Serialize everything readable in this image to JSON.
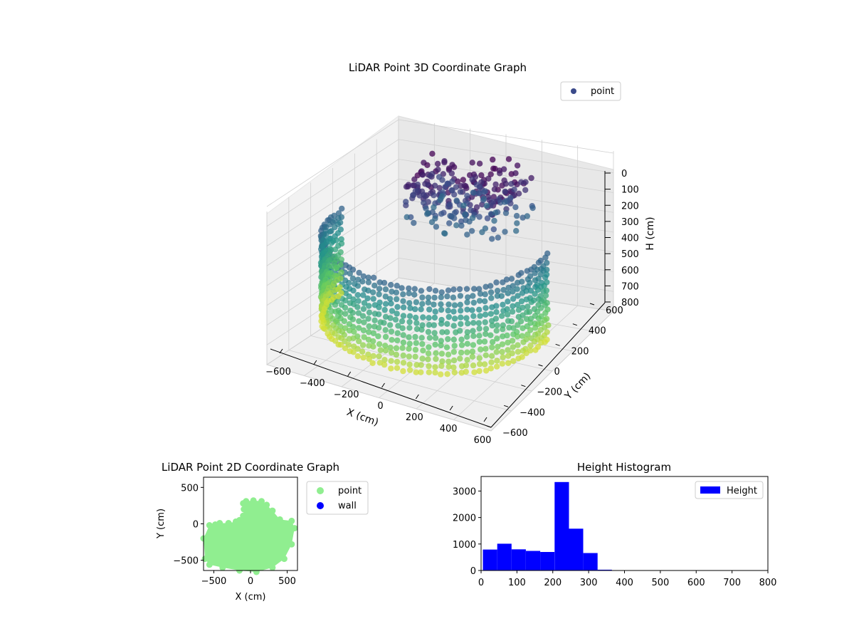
{
  "chart_data": [
    {
      "type": "scatter3d",
      "title": "LiDAR Point 3D Coordinate Graph",
      "xlabel": "X (cm)",
      "ylabel": "Y (cm)",
      "zlabel": "H (cm)",
      "xlim": [
        -600,
        600
      ],
      "ylim": [
        -600,
        600
      ],
      "zlim": [
        800,
        0
      ],
      "xticks": [
        "−600",
        "−400",
        "−200",
        "0",
        "200",
        "400",
        "600"
      ],
      "yticks": [
        "−600",
        "−400",
        "−200",
        "0",
        "200",
        "400",
        "600"
      ],
      "zticks": [
        "0",
        "100",
        "200",
        "300",
        "400",
        "500",
        "600",
        "700",
        "800"
      ],
      "legend": {
        "entries": [
          "point"
        ],
        "placement": "upper-right"
      },
      "grid": true,
      "colormap": "viridis",
      "series": [
        {
          "name": "point",
          "color": "#3b4a8a",
          "description_free": true,
          "shape": {
            "wall_radius": 560,
            "wall_y_range": [
              -600,
              80
            ],
            "wall_h_range": [
              220,
              650
            ],
            "arc_x_range": [
              -600,
              600
            ],
            "back_cluster_x_range": [
              -250,
              300
            ],
            "back_cluster_y_range": [
              0,
              400
            ],
            "back_cluster_h_range": [
              0,
              250
            ]
          }
        }
      ]
    },
    {
      "type": "scatter",
      "title": "LiDAR Point 2D Coordinate Graph",
      "xlabel": "X (cm)",
      "ylabel": "Y (cm)",
      "xlim": [
        -640,
        640
      ],
      "ylim": [
        -640,
        640
      ],
      "xticks": [
        -500,
        0,
        500
      ],
      "yticks": [
        -500,
        0,
        500
      ],
      "legend": {
        "entries": [
          "point",
          "wall"
        ],
        "placement": "outside-right"
      },
      "series": [
        {
          "name": "point",
          "color": "#90ee90",
          "outline": [
            [
              -620,
              -480
            ],
            [
              -640,
              -200
            ],
            [
              -560,
              -20
            ],
            [
              -480,
              -10
            ],
            [
              -420,
              10
            ],
            [
              -300,
              10
            ],
            [
              -200,
              30
            ],
            [
              -150,
              50
            ],
            [
              -100,
              110
            ],
            [
              -90,
              200
            ],
            [
              -100,
              280
            ],
            [
              -60,
              310
            ],
            [
              40,
              320
            ],
            [
              150,
              310
            ],
            [
              220,
              260
            ],
            [
              300,
              180
            ],
            [
              400,
              60
            ],
            [
              560,
              40
            ],
            [
              600,
              -60
            ],
            [
              560,
              -280
            ],
            [
              460,
              -480
            ],
            [
              300,
              -600
            ],
            [
              80,
              -660
            ],
            [
              -150,
              -640
            ],
            [
              -380,
              -600
            ],
            [
              -560,
              -560
            ]
          ]
        },
        {
          "name": "wall",
          "color": "#0000ff",
          "values": []
        }
      ]
    },
    {
      "type": "bar",
      "title": "Height Histogram",
      "xlabel": "",
      "ylabel": "",
      "xlim": [
        0,
        800
      ],
      "ylim": [
        0,
        3550
      ],
      "xticks": [
        0,
        100,
        200,
        300,
        400,
        500,
        600,
        700,
        800
      ],
      "yticks": [
        0,
        1000,
        2000,
        3000
      ],
      "legend": {
        "entries": [
          "Height"
        ],
        "placement": "upper-right"
      },
      "series": [
        {
          "name": "Height",
          "color": "#0000ff",
          "bin_width": 40,
          "bins": [
            5,
            45,
            85,
            125,
            165,
            205,
            245,
            285,
            325
          ],
          "values": [
            790,
            1010,
            800,
            740,
            700,
            3340,
            1580,
            660,
            30
          ]
        }
      ]
    }
  ]
}
